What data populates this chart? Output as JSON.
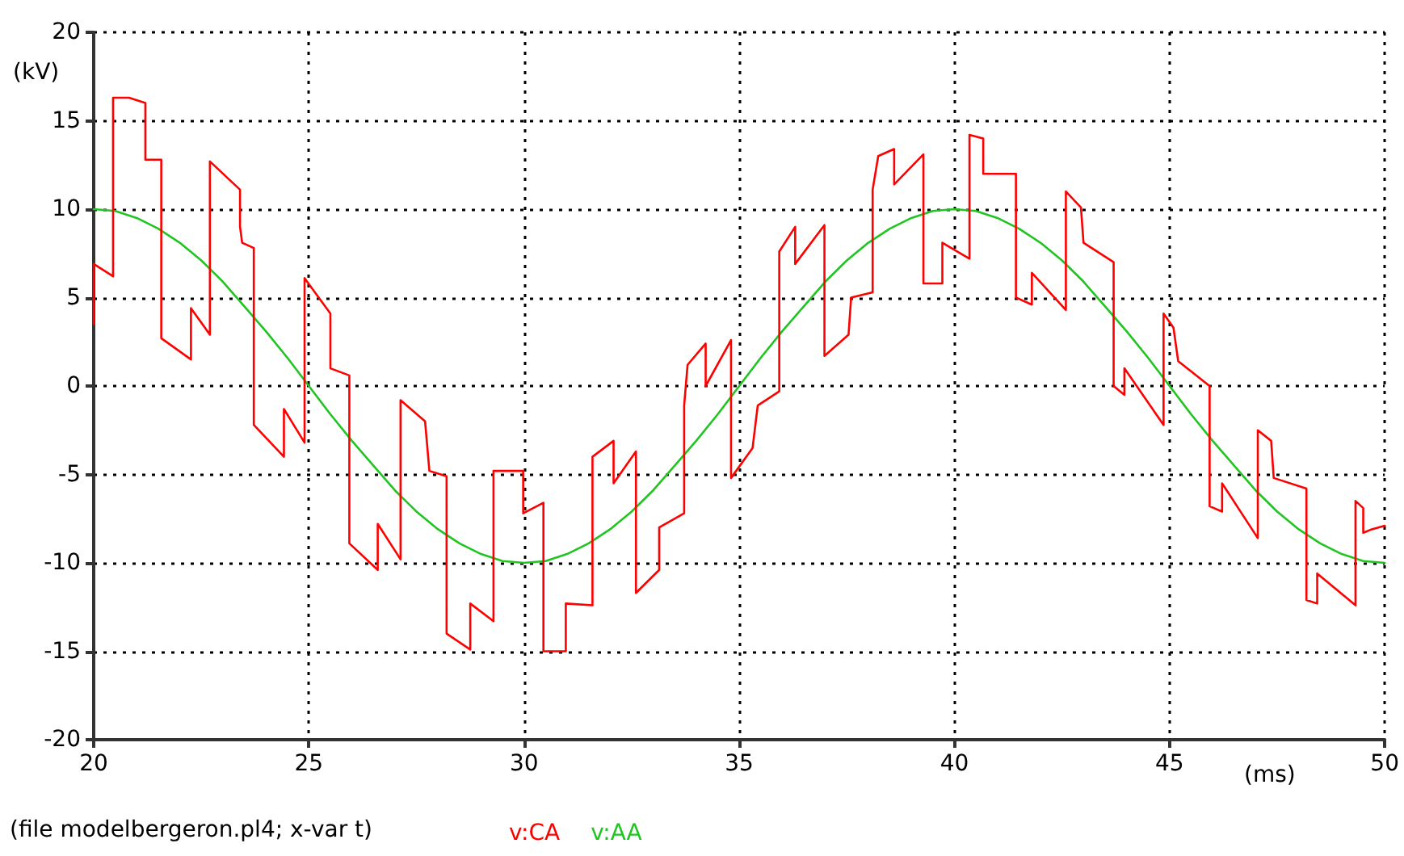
{
  "chart_data": {
    "type": "line",
    "xlabel": "(ms)",
    "ylabel": "(kV)",
    "annotations": [
      "(file modelbergeron.pl4; x-var t)"
    ],
    "xlim": [
      20,
      50
    ],
    "xticks": [
      20,
      25,
      30,
      35,
      40,
      45,
      50
    ],
    "ylim": [
      -20,
      20
    ],
    "yticks": [
      -20,
      -15,
      -10,
      -5,
      0,
      5,
      10,
      15,
      20
    ],
    "grid": true,
    "legend": "bottom left",
    "marker": "none",
    "line_style": "solid",
    "series": [
      {
        "name": "v:CA",
        "color": "#ff0000",
        "x": [
          20,
          20,
          20.45,
          20.45,
          20.82,
          21.2,
          21.2,
          21.57,
          21.57,
          22.26,
          22.26,
          22.7,
          22.7,
          23.4,
          23.4,
          23.45,
          23.72,
          23.72,
          24.42,
          24.42,
          24.9,
          24.9,
          25.5,
          25.5,
          25.94,
          25.94,
          26.6,
          26.6,
          27.13,
          27.13,
          27.7,
          27.8,
          28.2,
          28.2,
          28.75,
          28.75,
          29.29,
          29.29,
          29.98,
          29.98,
          30.45,
          30.45,
          30.97,
          30.97,
          31.59,
          31.59,
          32.08,
          32.08,
          32.6,
          32.6,
          33.14,
          33.14,
          33.72,
          33.72,
          33.8,
          34.22,
          34.22,
          34.81,
          34.81,
          35.31,
          35.43,
          35.93,
          35.93,
          36.3,
          36.3,
          36.98,
          36.98,
          37.54,
          37.6,
          38.1,
          38.1,
          38.23,
          38.6,
          38.6,
          39.28,
          39.28,
          39.72,
          39.72,
          40.35,
          40.35,
          40.67,
          40.67,
          41.43,
          41.43,
          41.8,
          41.8,
          42.59,
          42.59,
          42.94,
          43.0,
          43.7,
          43.7,
          43.95,
          43.95,
          44.86,
          44.86,
          45.09,
          45.2,
          45.93,
          45.93,
          46.22,
          46.22,
          47.05,
          47.05,
          47.36,
          47.42,
          48.18,
          48.18,
          48.43,
          48.43,
          49.32,
          49.32,
          49.5,
          49.5,
          49.7,
          50
        ],
        "values": [
          3.5,
          6.9,
          6.2,
          16.3,
          16.3,
          16.0,
          12.8,
          12.8,
          2.7,
          1.5,
          4.4,
          2.9,
          12.7,
          11.1,
          9.0,
          8.1,
          7.8,
          -2.2,
          -4.0,
          -1.3,
          -3.2,
          6.1,
          4.1,
          1.0,
          0.6,
          -8.9,
          -10.4,
          -7.8,
          -9.8,
          -0.8,
          -2.0,
          -4.8,
          -5.1,
          -14.0,
          -14.9,
          -12.3,
          -13.3,
          -4.8,
          -4.8,
          -7.2,
          -6.6,
          -15.0,
          -15.0,
          -12.3,
          -12.4,
          -4.0,
          -3.1,
          -5.5,
          -3.7,
          -11.7,
          -10.4,
          -8.0,
          -7.2,
          -1.1,
          1.2,
          2.4,
          0,
          2.6,
          -5.2,
          -3.5,
          -1.1,
          -0.3,
          7.6,
          9.0,
          6.9,
          9.1,
          1.7,
          2.9,
          5.0,
          5.3,
          11.1,
          13.0,
          13.4,
          11.4,
          13.1,
          5.8,
          5.8,
          8.1,
          7.2,
          14.2,
          14.0,
          12.0,
          12.0,
          5.0,
          4.6,
          6.4,
          4.3,
          11.0,
          10.1,
          8.1,
          7.0,
          0,
          -0.5,
          1.0,
          -2.2,
          4.1,
          3.3,
          1.4,
          0,
          -6.8,
          -7.1,
          -5.5,
          -8.6,
          -2.5,
          -3.1,
          -5.2,
          -5.8,
          -12.1,
          -12.3,
          -10.6,
          -12.4,
          -6.5,
          -6.9,
          -8.3,
          -8.1,
          -7.9
        ]
      },
      {
        "name": "v:AA",
        "color": "#22c422",
        "x": [
          20,
          20.5,
          21,
          21.5,
          22,
          22.5,
          23,
          23.5,
          24,
          24.5,
          25,
          25.5,
          26,
          26.5,
          27,
          27.5,
          28,
          28.5,
          29,
          29.5,
          30,
          30.5,
          31,
          31.5,
          32,
          32.5,
          33,
          33.5,
          34,
          34.5,
          35,
          35.5,
          36,
          36.5,
          37,
          37.5,
          38,
          38.5,
          39,
          39.5,
          40,
          40.5,
          41,
          41.5,
          42,
          42.5,
          43,
          43.5,
          44,
          44.5,
          45,
          45.5,
          46,
          46.5,
          47,
          47.5,
          48,
          48.5,
          49,
          49.5,
          50
        ],
        "values": [
          10,
          9.9,
          9.5,
          8.9,
          8.1,
          7.1,
          5.9,
          4.5,
          3.1,
          1.6,
          0,
          -1.6,
          -3.1,
          -4.5,
          -5.9,
          -7.1,
          -8.1,
          -8.9,
          -9.5,
          -9.9,
          -10,
          -9.9,
          -9.5,
          -8.9,
          -8.1,
          -7.1,
          -5.9,
          -4.5,
          -3.1,
          -1.6,
          0,
          1.6,
          3.1,
          4.5,
          5.9,
          7.1,
          8.1,
          8.9,
          9.5,
          9.9,
          10,
          9.9,
          9.5,
          8.9,
          8.1,
          7.1,
          5.9,
          4.5,
          3.1,
          1.6,
          0,
          -1.6,
          -3.1,
          -4.5,
          -5.9,
          -7.1,
          -8.1,
          -8.9,
          -9.5,
          -9.9,
          -10
        ]
      }
    ]
  }
}
